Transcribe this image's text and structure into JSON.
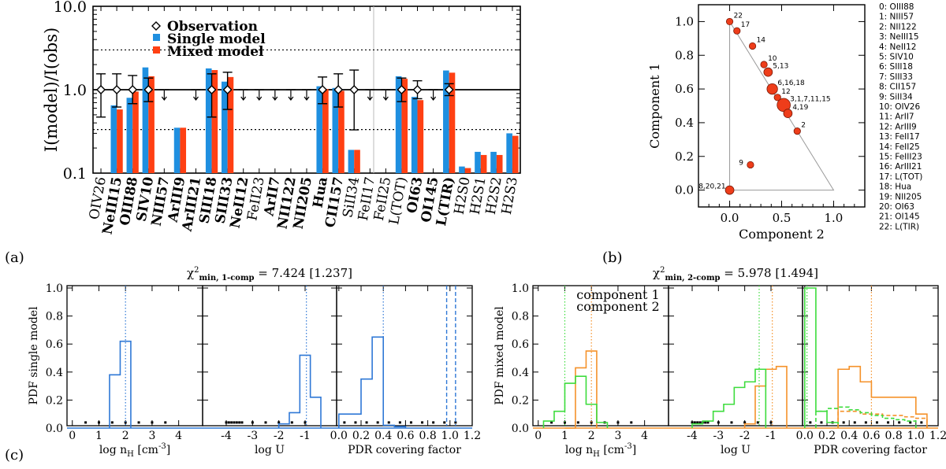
{
  "colors": {
    "single": "#1f8fe0",
    "mixed": "#ff4013",
    "comp1": "#f5922a",
    "comp2": "#3ddc3d",
    "single_hist": "#2f78d6",
    "marker": "#ee3d1a"
  },
  "panel_labels": {
    "a": "(a)",
    "b": "(b)",
    "c": "(c)"
  },
  "chart_data": [
    {
      "id": "a",
      "type": "bar",
      "ylabel": "I(model)/I(obs)",
      "yscale": "log",
      "ylim": [
        0.1,
        10
      ],
      "yticks": [
        "0.1",
        "1.0",
        "10.0"
      ],
      "legend": [
        {
          "marker": "diamond",
          "label": "Observation"
        },
        {
          "marker": "single",
          "label": "Single model"
        },
        {
          "marker": "mixed",
          "label": "Mixed model"
        }
      ],
      "hlines": [
        1.0,
        3.0,
        0.333
      ],
      "categories": [
        "OIV26",
        "NeIII15",
        "OIII88",
        "SIV10",
        "NIII57",
        "ArIII9",
        "ArIII21",
        "SIII18",
        "SIII33",
        "NeII12",
        "FeII23",
        "ArII7",
        "NII122",
        "NII205",
        "Hua",
        "CII157",
        "SiII34",
        "FeII17",
        "FeII25",
        "L(TOT)",
        "OI63",
        "OI145",
        "L(TIR)",
        "H2S0",
        "H2S1",
        "H2S2",
        "H2S3"
      ],
      "bold": [
        false,
        true,
        true,
        true,
        true,
        true,
        true,
        true,
        true,
        true,
        false,
        true,
        true,
        true,
        true,
        true,
        false,
        false,
        false,
        false,
        true,
        true,
        true,
        false,
        false,
        false,
        false
      ],
      "series": [
        {
          "name": "Single model",
          "values": [
            null,
            0.65,
            0.8,
            1.85,
            null,
            0.35,
            null,
            1.8,
            1.25,
            null,
            null,
            null,
            null,
            null,
            1.1,
            1.05,
            0.19,
            null,
            null,
            1.45,
            0.82,
            null,
            1.7,
            0.12,
            0.18,
            0.18,
            0.3
          ]
        },
        {
          "name": "Mixed model",
          "values": [
            null,
            0.58,
            0.95,
            1.45,
            null,
            0.35,
            null,
            1.72,
            1.42,
            null,
            null,
            null,
            null,
            null,
            1.02,
            0.97,
            0.19,
            null,
            null,
            1.35,
            0.75,
            null,
            1.6,
            0.115,
            0.165,
            0.165,
            0.28
          ]
        }
      ],
      "obs_points": [
        {
          "i": 0,
          "lo": 0.47,
          "hi": 1.55
        },
        {
          "i": 1,
          "lo": 0.62,
          "hi": 1.55
        },
        {
          "i": 2,
          "lo": 0.68,
          "hi": 1.48
        },
        {
          "i": 3,
          "lo": 0.72,
          "hi": 1.38
        },
        {
          "i": 7,
          "lo": 0.47,
          "hi": 1.55
        },
        {
          "i": 8,
          "lo": 0.58,
          "hi": 1.62
        },
        {
          "i": 14,
          "lo": 0.68,
          "hi": 1.42
        },
        {
          "i": 15,
          "lo": 0.62,
          "hi": 1.55
        },
        {
          "i": 16,
          "lo": 0.33,
          "hi": 1.72
        },
        {
          "i": 19,
          "lo": 0.72,
          "hi": 1.38
        },
        {
          "i": 20,
          "lo": 0.78,
          "hi": 1.28
        },
        {
          "i": 22,
          "lo": 0.85,
          "hi": 1.18
        }
      ],
      "upper_limits": [
        4,
        6,
        9,
        10,
        11,
        12,
        13,
        17,
        18,
        21
      ]
    },
    {
      "id": "b",
      "type": "scatter",
      "xlabel": "Component 2",
      "ylabel": "Component 1",
      "xlim": [
        -0.3,
        1.3
      ],
      "ylim": [
        -0.1,
        1.1
      ],
      "xticks": [
        "0.0",
        "0.5",
        "1.0"
      ],
      "yticks": [
        "0.0",
        "0.2",
        "0.4",
        "0.6",
        "0.8",
        "1.0"
      ],
      "points": [
        {
          "x": 0.0,
          "y": 1.0,
          "r": 1,
          "label": "22"
        },
        {
          "x": 0.07,
          "y": 0.945,
          "r": 1,
          "label": "17"
        },
        {
          "x": 0.22,
          "y": 0.855,
          "r": 1,
          "label": "14"
        },
        {
          "x": 0.33,
          "y": 0.745,
          "r": 1,
          "label": "10"
        },
        {
          "x": 0.37,
          "y": 0.7,
          "r": 1.3,
          "label": "5,13"
        },
        {
          "x": 0.41,
          "y": 0.6,
          "r": 1.6,
          "label": "6,16,18"
        },
        {
          "x": 0.46,
          "y": 0.55,
          "r": 1,
          "label": "12"
        },
        {
          "x": 0.52,
          "y": 0.505,
          "r": 2.0,
          "label": "3,1,7,11,15"
        },
        {
          "x": 0.56,
          "y": 0.455,
          "r": 1.3,
          "label": "4,19"
        },
        {
          "x": 0.65,
          "y": 0.35,
          "r": 1,
          "label": "2"
        },
        {
          "x": 0.2,
          "y": 0.15,
          "r": 1,
          "label": "9"
        },
        {
          "x": 0.0,
          "y": 0.0,
          "r": 1.3,
          "label": "8,20,21"
        }
      ],
      "legend": [
        "0: OIII88",
        "1: NIII57",
        "2: NII122",
        "3: NeIII15",
        "4: NeII12",
        "5: SIV10",
        "6: SIII18",
        "7: SIII33",
        "8: CII157",
        "9: SiII34",
        "10: OIV26",
        "11:   ArII7",
        "12: ArIII9",
        "13: FeII17",
        "14: FeII25",
        "15: FeIII23",
        "16: ArIII21",
        "17: L(TOT)",
        "18:   Hua",
        "19: NII205",
        "20: OI63",
        "21: OI145",
        "22: L(TIR)"
      ]
    },
    {
      "id": "c-left",
      "type": "histogram",
      "title": "χ²min, 1-comp = 7.424 [1.237]",
      "title_main": "χ",
      "title_sup": "2",
      "title_sub": "min, 1-comp",
      "title_tail": " = 7.424 [1.237]",
      "ylabel": "PDF single model",
      "ylim": [
        0,
        1.0
      ],
      "yticks": [
        "0.0",
        "0.2",
        "0.4",
        "0.6",
        "0.8",
        "1.0"
      ],
      "subpanels": [
        {
          "xlabel": "log nH [cm⁻³]",
          "xlabel_pre": "log n",
          "xlabel_sub": "H",
          "xlabel_post": " [cm",
          "xlabel_sup": "-3",
          "xlabel_end": "]",
          "xlim": [
            -0.2,
            4.9
          ],
          "xticks": [
            "0",
            "1",
            "2",
            "3",
            "4"
          ],
          "bins": [
            1.4,
            1.8,
            2.2
          ],
          "heights": [
            0.38,
            0.62
          ],
          "vline": 2.0,
          "points": [
            0.5,
            1.0,
            1.5,
            2.0,
            2.5,
            3.0,
            3.5
          ]
        },
        {
          "xlabel": "log U",
          "xlim": [
            -4.9,
            0.2
          ],
          "xticks": [
            "-4",
            "-3",
            "-2",
            "-1"
          ],
          "bins": [
            -2.0,
            -1.6,
            -1.2,
            -0.8,
            -0.4
          ],
          "heights": [
            0.03,
            0.11,
            0.52,
            0.22
          ],
          "vline": -0.95,
          "points": [
            -4.0,
            -3.9,
            -3.8,
            -3.7,
            -3.6,
            -3.5,
            -3.4,
            -3.0,
            -2.5,
            -2.0,
            -1.5,
            -1.0
          ]
        },
        {
          "xlabel": "PDR covering factor",
          "xlim": [
            -0.02,
            1.2
          ],
          "xticks": [
            "0.0",
            "0.2",
            "0.4",
            "0.6",
            "0.8",
            "1.0",
            "1.2"
          ],
          "bins": [
            0.0,
            0.1,
            0.2,
            0.3,
            0.4,
            0.5,
            0.6
          ],
          "heights": [
            0.1,
            0.1,
            0.35,
            0.65,
            0.02,
            0.01
          ],
          "vline": 0.4,
          "dashed_vlines": [
            0.97,
            1.05
          ],
          "points": [
            0.05,
            0.15,
            0.25,
            0.35,
            0.45,
            0.55,
            0.65,
            0.75,
            0.85,
            0.95,
            1.05
          ]
        }
      ]
    },
    {
      "id": "c-right",
      "type": "histogram",
      "title": "χ²min, 2-comp = 5.978 [1.494]",
      "title_main": "χ",
      "title_sup": "2",
      "title_sub": "min, 2-comp",
      "title_tail": " = 5.978 [1.494]",
      "ylabel": "PDF mixed model",
      "ylim": [
        0,
        1.0
      ],
      "yticks": [
        "0.0",
        "0.2",
        "0.4",
        "0.6",
        "0.8",
        "1.0"
      ],
      "legend": [
        {
          "name": "component 1",
          "color": "comp1"
        },
        {
          "name": "component 2",
          "color": "comp2"
        }
      ],
      "subpanels": [
        {
          "xlabel_pre": "log n",
          "xlabel_sub": "H",
          "xlabel_post": " [cm",
          "xlabel_sup": "-3",
          "xlabel_end": "]",
          "xlim": [
            -0.2,
            4.9
          ],
          "xticks": [
            "0",
            "1",
            "2",
            "3",
            "4"
          ],
          "series": [
            {
              "color": "comp1",
              "bins": [
                1.0,
                1.4,
                1.8,
                2.2
              ],
              "heights": [
                0.0,
                0.43,
                0.55
              ],
              "vline": 2.0
            },
            {
              "color": "comp2",
              "bins": [
                0.2,
                0.6,
                1.0,
                1.4,
                1.8,
                2.2,
                2.6
              ],
              "heights": [
                0.05,
                0.12,
                0.32,
                0.37,
                0.17,
                0.04
              ],
              "vline": 1.0
            }
          ],
          "points": [
            0.5,
            1.0,
            1.5,
            2.0,
            2.5,
            3.0,
            3.5
          ]
        },
        {
          "xlabel": "log U",
          "xlim": [
            -4.9,
            0.2
          ],
          "xticks": [
            "-4",
            "-3",
            "-2",
            "-1"
          ],
          "series": [
            {
              "color": "comp1",
              "bins": [
                -2.0,
                -1.6,
                -1.2,
                -0.8,
                -0.4
              ],
              "heights": [
                0.03,
                0.3,
                0.42,
                0.44
              ],
              "vline": -0.95
            },
            {
              "color": "comp2",
              "bins": [
                -4.0,
                -3.6,
                -3.2,
                -2.8,
                -2.4,
                -2.0,
                -1.6,
                -1.2
              ],
              "heights": [
                0.03,
                0.05,
                0.12,
                0.17,
                0.29,
                0.33,
                0.42
              ],
              "vline": -1.45
            }
          ],
          "points": [
            -4.0,
            -3.9,
            -3.8,
            -3.7,
            -3.6,
            -3.5,
            -3.4,
            -3.0,
            -2.5,
            -2.0,
            -1.5,
            -1.0
          ]
        },
        {
          "xlabel": "PDR covering factor",
          "xlim": [
            -0.02,
            1.2
          ],
          "xticks": [
            "0.0",
            "0.2",
            "0.4",
            "0.6",
            "0.8",
            "1.0",
            "1.2"
          ],
          "series": [
            {
              "color": "comp1",
              "bins": [
                0.3,
                0.4,
                0.5,
                0.6,
                0.7,
                0.8,
                0.9,
                1.0,
                1.1
              ],
              "heights": [
                0.42,
                0.44,
                0.33,
                0.22,
                0.22,
                0.22,
                0.22,
                0.1
              ],
              "vline": 0.6
            },
            {
              "color": "comp2",
              "bins": [
                0.0,
                0.1,
                0.2,
                0.3
              ],
              "heights": [
                1.0,
                0.12,
                0.04
              ],
              "vline": 0.02
            },
            {
              "color": "comp1",
              "dashed": true,
              "bins": [
                0.3,
                0.4,
                0.5,
                0.6,
                0.7,
                0.8,
                0.9,
                1.0,
                1.1
              ],
              "heights": [
                0.12,
                0.12,
                0.1,
                0.1,
                0.09,
                0.09,
                0.08,
                0.07
              ]
            },
            {
              "color": "comp2",
              "dashed": true,
              "bins": [
                0.1,
                0.2,
                0.3,
                0.4,
                0.5,
                0.6,
                0.7,
                0.8,
                0.9,
                1.0
              ],
              "heights": [
                0.12,
                0.14,
                0.15,
                0.13,
                0.11,
                0.09,
                0.07,
                0.06,
                0.05
              ]
            }
          ],
          "points": [
            0.05,
            0.15,
            0.25,
            0.35,
            0.45,
            0.55,
            0.65,
            0.75,
            0.85,
            0.95,
            1.05
          ]
        }
      ]
    }
  ]
}
